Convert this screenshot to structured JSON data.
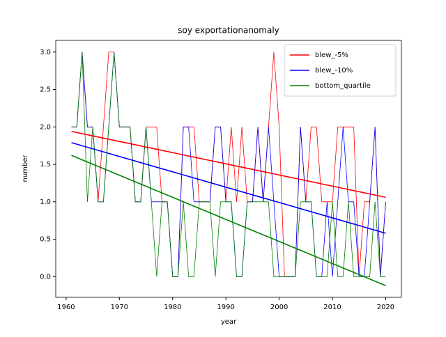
{
  "chart_data": {
    "type": "line",
    "title": "soy exportationanomaly",
    "x_label": "year",
    "y_label": "number",
    "x": [
      1961,
      1962,
      1963,
      1964,
      1965,
      1966,
      1967,
      1968,
      1969,
      1970,
      1971,
      1972,
      1973,
      1974,
      1975,
      1976,
      1977,
      1978,
      1979,
      1980,
      1981,
      1982,
      1983,
      1984,
      1985,
      1986,
      1987,
      1988,
      1989,
      1990,
      1991,
      1992,
      1993,
      1994,
      1995,
      1996,
      1997,
      1998,
      1999,
      2000,
      2001,
      2002,
      2003,
      2004,
      2005,
      2006,
      2007,
      2008,
      2009,
      2010,
      2011,
      2012,
      2013,
      2014,
      2015,
      2016,
      2017,
      2018,
      2019,
      2020
    ],
    "series": [
      {
        "name": "blew_-5%",
        "color": "#ff0000",
        "values": [
          2,
          2,
          3,
          2,
          2,
          1,
          2,
          3,
          3,
          2,
          2,
          2,
          1,
          1,
          2,
          2,
          2,
          1,
          1,
          0,
          0,
          2,
          2,
          2,
          1,
          1,
          1,
          2,
          2,
          1,
          2,
          1,
          2,
          1,
          1,
          2,
          1,
          2,
          3,
          2,
          0,
          0,
          0,
          2,
          1,
          2,
          2,
          1,
          1,
          1,
          2,
          2,
          2,
          2,
          0,
          1,
          1,
          2,
          0,
          1
        ],
        "trend": [
          1.94,
          1.06
        ]
      },
      {
        "name": "blew_-10%",
        "color": "#0000ff",
        "values": [
          2,
          2,
          3,
          2,
          2,
          1,
          1,
          2,
          3,
          2,
          2,
          2,
          1,
          1,
          2,
          1,
          1,
          1,
          1,
          0,
          0,
          2,
          2,
          1,
          1,
          1,
          1,
          2,
          2,
          1,
          1,
          0,
          0,
          1,
          1,
          2,
          1,
          2,
          1,
          0,
          0,
          0,
          0,
          2,
          1,
          1,
          0,
          0,
          1,
          0,
          1,
          2,
          1,
          1,
          0,
          0,
          1,
          2,
          0,
          1
        ],
        "trend": [
          1.79,
          0.58
        ]
      },
      {
        "name": "bottom_quartile",
        "color": "#008000",
        "values": [
          2,
          2,
          3,
          1,
          2,
          1,
          1,
          2,
          3,
          2,
          2,
          2,
          1,
          1,
          2,
          1,
          0,
          1,
          1,
          0,
          0,
          1,
          0,
          0,
          1,
          1,
          1,
          0,
          1,
          1,
          1,
          0,
          0,
          1,
          1,
          1,
          1,
          1,
          0,
          0,
          0,
          0,
          0,
          1,
          1,
          1,
          0,
          0,
          0,
          1,
          0,
          0,
          1,
          0,
          0,
          0,
          0,
          1,
          0,
          0
        ],
        "trend": [
          1.62,
          -0.12
        ]
      }
    ],
    "xlim": [
      1958.05,
      2022.95
    ],
    "ylim": [
      -0.276,
      3.156
    ],
    "xticks": [
      1960,
      1970,
      1980,
      1990,
      2000,
      2010,
      2020
    ],
    "yticks": [
      {
        "value": 0,
        "label": "0.0"
      },
      {
        "value": 0.5,
        "label": "0.5"
      },
      {
        "value": 1,
        "label": "1.0"
      },
      {
        "value": 1.5,
        "label": "1.5"
      },
      {
        "value": 2,
        "label": "2.0"
      },
      {
        "value": 2.5,
        "label": "2.5"
      },
      {
        "value": 3,
        "label": "3.0"
      }
    ],
    "legend": "upper right"
  }
}
